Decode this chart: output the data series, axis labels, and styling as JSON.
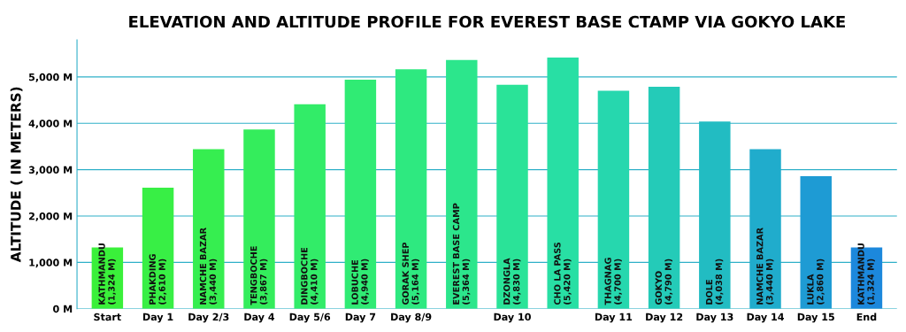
{
  "chart_data": {
    "type": "bar",
    "title": "ELEVATION AND ALTITUDE PROFILE FOR EVEREST BASE CTAMP VIA GOKYO LAKE",
    "ylabel": "ALTITUDE ( IN METERS)",
    "categories": [
      "Start",
      "Day 1",
      "Day 2/3",
      "Day 4",
      "Day 5/6",
      "Day 7",
      "Day 8/9",
      null,
      "Day 10",
      null,
      "Day 11",
      "Day 12",
      "Day 13",
      "Day 14",
      "Day 15",
      "End"
    ],
    "values": [
      1324,
      2610,
      3440,
      3867,
      4410,
      4940,
      5164,
      5364,
      4830,
      5420,
      4700,
      4790,
      4038,
      3440,
      2860,
      1324
    ],
    "value_labels": [
      "KATHMANDU\n(1,324 M)",
      "PHAKDING\n(2,610 M)",
      "NAMCHE BAZAR\n(3,440 M)",
      "TENGBOCHE\n(3,867 M)",
      "DINGBOCHE\n(4,410 M)",
      "LOBUCHE\n(4,940 M)",
      "GORAK SHEP\n(5,164 M)",
      "EVEREST BASE CAMP\n(5,364 M)",
      "DZONGLA\n(4,830 M)",
      "CHO LA PASS\n(5,420 M)",
      "THAGNAG\n(4,700 M)",
      "GOKYO\n(4,790 M)",
      "DOLE\n(4,038 M)",
      "NAMCHE BAZAR\n(3,440 M)",
      "LUKLA\n(2,860 M)",
      "KATHMANDU\n(1,324 M)"
    ],
    "colors": [
      "#3af03a",
      "#38ef45",
      "#36ee50",
      "#34ed5c",
      "#32ec68",
      "#30eb74",
      "#2ee980",
      "#2ce68c",
      "#2ae398",
      "#28dfa4",
      "#26d7ae",
      "#24cbb8",
      "#22bcc2",
      "#20accc",
      "#1e9bd4",
      "#1c88dc"
    ],
    "ylim": [
      0,
      5800
    ],
    "yticks": [
      {
        "value": 0,
        "label": "0 M"
      },
      {
        "value": 1000,
        "label": "1,000 M"
      },
      {
        "value": 2000,
        "label": "2,000 M"
      },
      {
        "value": 3000,
        "label": "3,000 M"
      },
      {
        "value": 4000,
        "label": "4,000 M"
      },
      {
        "value": 5000,
        "label": "5,000 M"
      }
    ],
    "grid": "y",
    "legend": false
  }
}
